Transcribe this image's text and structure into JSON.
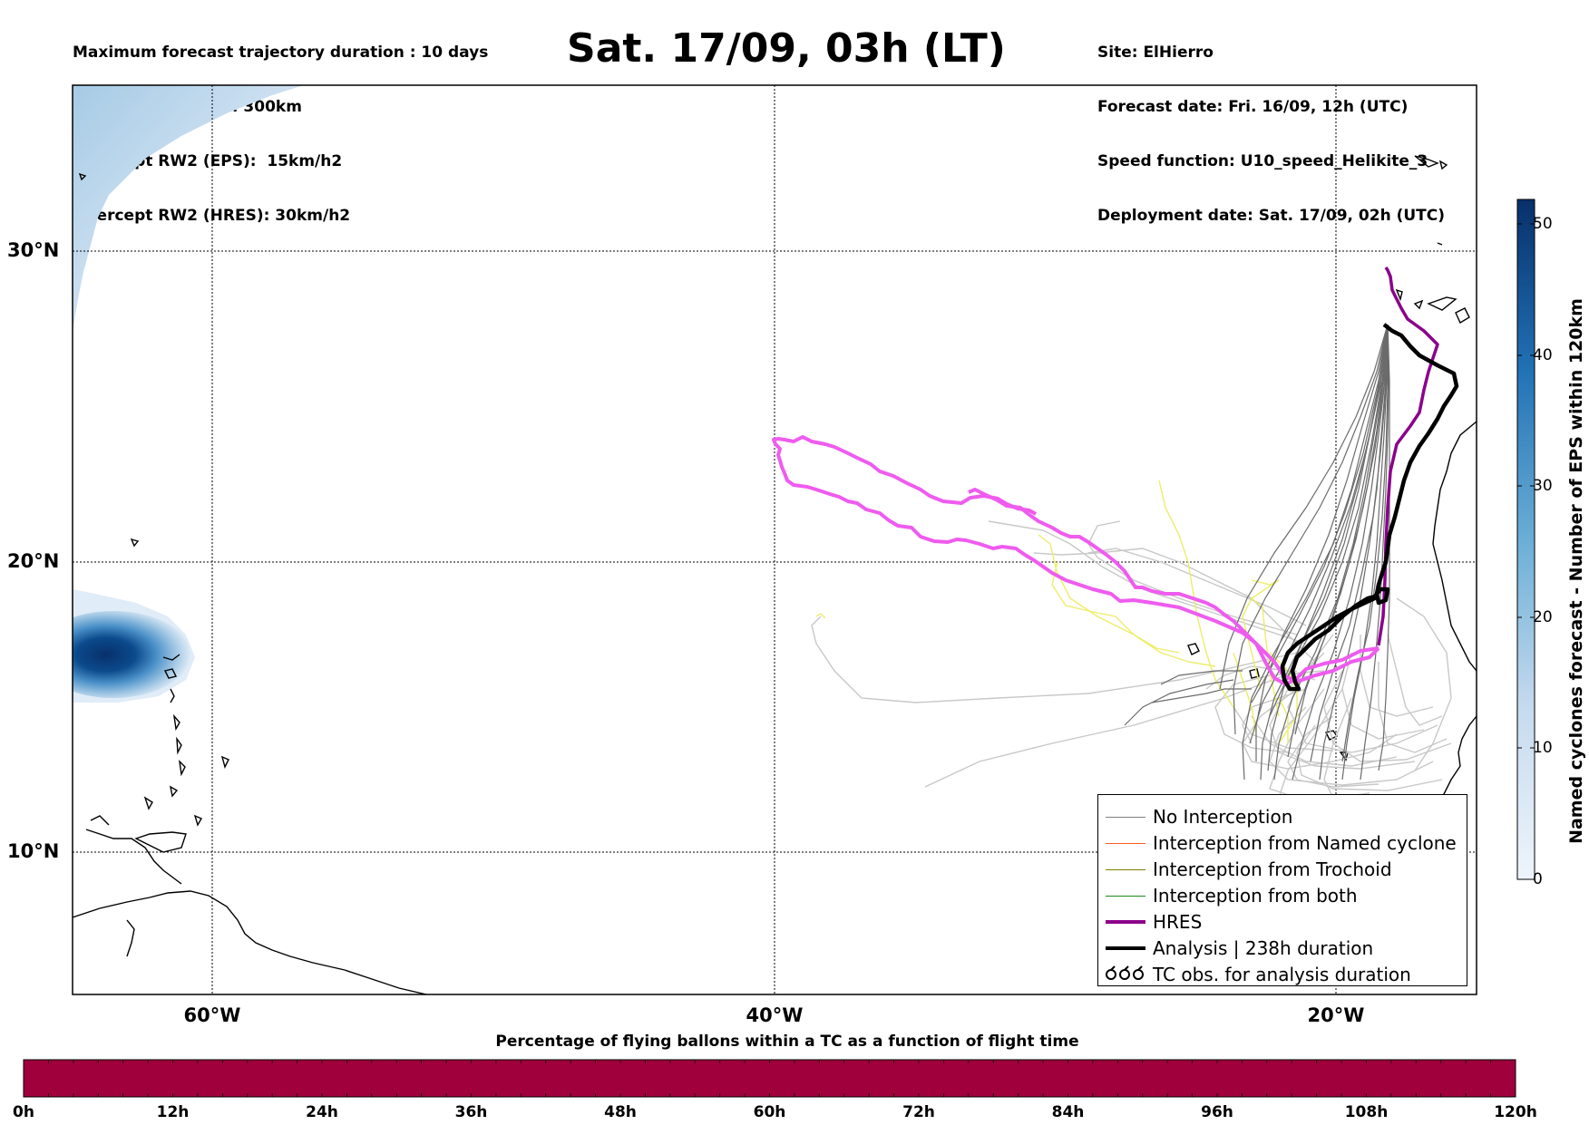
{
  "header_left": [
    "Maximum forecast trajectory duration : 10 days",
    "Intercept distance: 300km",
    "Intercept RW2 (EPS):  15km/h2",
    "Intercept RW2 (HRES): 30km/h2"
  ],
  "title": "Sat. 17/09, 03h (LT)",
  "header_right": [
    "Site: ElHierro",
    "Forecast date: Fri. 16/09, 12h (UTC)",
    "Speed function: U10_speed_Helikite_3",
    "Deployment date: Sat. 17/09, 02h (UTC)"
  ],
  "lat_labels": [
    "30°N",
    "20°N",
    "10°N"
  ],
  "lon_labels": [
    "60°W",
    "40°W",
    "20°W"
  ],
  "legend": [
    {
      "label": "No Interception",
      "color": "#808080",
      "style": "thin"
    },
    {
      "label": "Interception from Named cyclone",
      "color": "#ff5a1e",
      "style": "thin"
    },
    {
      "label": "Interception from Trochoid",
      "color": "#808000",
      "style": "thin"
    },
    {
      "label": "Interception from both",
      "color": "#1a8a1a",
      "style": "thin"
    },
    {
      "label": "HRES",
      "color": "#8b008b",
      "style": "thick"
    },
    {
      "label": "Analysis | 238h duration",
      "color": "#000000",
      "style": "thick"
    },
    {
      "label": "TC obs. for analysis duration",
      "color": "#000000",
      "style": "symbol"
    }
  ],
  "colorbar": {
    "title": "Named cyclones forecast - Number of EPS within 120km",
    "ticks": [
      "50",
      "40",
      "30",
      "20",
      "10",
      "0"
    ],
    "color_low": "#e8f0fa",
    "color_high": "#08306b"
  },
  "bottom_bar": {
    "title": "Percentage of flying ballons within a TC as a function of flight time",
    "ticks": [
      "0h",
      "12h",
      "24h",
      "36h",
      "48h",
      "60h",
      "72h",
      "84h",
      "96h",
      "108h",
      "120h"
    ],
    "fill_color": "#a0003c"
  }
}
